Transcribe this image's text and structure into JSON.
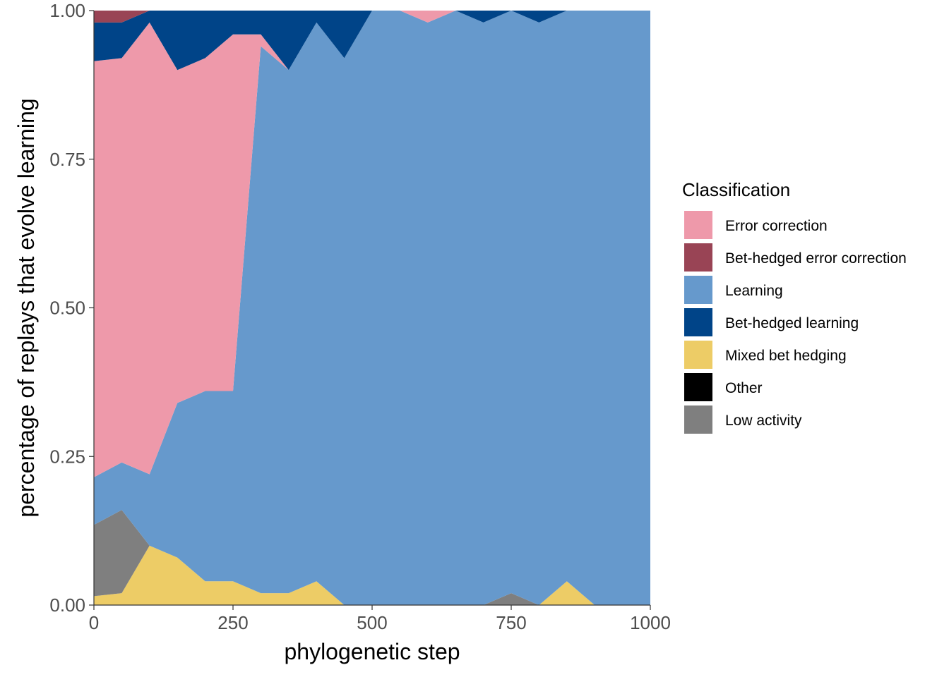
{
  "chart_data": {
    "type": "area",
    "stacked": true,
    "normalized": true,
    "title": "",
    "xlabel": "phylogenetic step",
    "ylabel": "percentage of replays that evolve learning",
    "xlim": [
      0,
      1000
    ],
    "ylim": [
      0,
      1
    ],
    "x_ticks": [
      "0",
      "250",
      "500",
      "750",
      "1000"
    ],
    "y_ticks": [
      "0.00",
      "0.25",
      "0.50",
      "0.75",
      "1.00"
    ],
    "grid": false,
    "legend": {
      "title": "Classification",
      "position": "right"
    },
    "x": [
      0,
      50,
      100,
      150,
      200,
      250,
      300,
      350,
      400,
      450,
      500,
      550,
      600,
      650,
      700,
      750,
      800,
      850,
      900,
      950,
      1000
    ],
    "series": [
      {
        "name": "Mixed bet hedging",
        "color": "#EDCC66",
        "values": [
          0.015,
          0.02,
          0.1,
          0.08,
          0.04,
          0.04,
          0.02,
          0.02,
          0.04,
          0.0,
          0.0,
          0.0,
          0.0,
          0.0,
          0.0,
          0.0,
          0.0,
          0.04,
          0.0,
          0.0,
          0.0
        ]
      },
      {
        "name": "Low activity",
        "color": "#7F7F7F",
        "values": [
          0.12,
          0.14,
          0.0,
          0.0,
          0.0,
          0.0,
          0.0,
          0.0,
          0.0,
          0.0,
          0.0,
          0.0,
          0.0,
          0.0,
          0.0,
          0.02,
          0.0,
          0.0,
          0.0,
          0.0,
          0.0
        ]
      },
      {
        "name": "Other",
        "color": "#000000",
        "values": [
          0,
          0,
          0,
          0,
          0,
          0,
          0,
          0,
          0,
          0,
          0,
          0,
          0,
          0,
          0,
          0,
          0,
          0,
          0,
          0,
          0
        ]
      },
      {
        "name": "Learning",
        "color": "#6699CC",
        "values": [
          0.08,
          0.08,
          0.12,
          0.26,
          0.32,
          0.32,
          0.92,
          0.88,
          0.94,
          0.92,
          1.0,
          1.0,
          0.98,
          1.0,
          0.98,
          0.98,
          0.98,
          0.96,
          1.0,
          1.0,
          1.0
        ]
      },
      {
        "name": "Error correction",
        "color": "#EE99AA",
        "values": [
          0.7,
          0.68,
          0.76,
          0.56,
          0.56,
          0.6,
          0.02,
          0.0,
          0.0,
          0.0,
          0.0,
          0.0,
          0.02,
          0.0,
          0.0,
          0.0,
          0.0,
          0.0,
          0.0,
          0.0,
          0.0
        ]
      },
      {
        "name": "Bet-hedged learning",
        "color": "#004488",
        "values": [
          0.065,
          0.06,
          0.02,
          0.1,
          0.08,
          0.04,
          0.04,
          0.1,
          0.02,
          0.08,
          0.0,
          0.0,
          0.0,
          0.0,
          0.02,
          0.0,
          0.02,
          0.0,
          0.0,
          0.0,
          0.0
        ]
      },
      {
        "name": "Bet-hedged error correction",
        "color": "#994455",
        "values": [
          0.02,
          0.02,
          0.0,
          0.0,
          0.0,
          0.0,
          0.0,
          0.0,
          0.0,
          0.0,
          0.0,
          0.0,
          0.0,
          0.0,
          0.0,
          0.0,
          0.0,
          0.0,
          0.0,
          0.0,
          0.0
        ]
      }
    ],
    "legend_order": [
      "Error correction",
      "Bet-hedged error correction",
      "Learning",
      "Bet-hedged learning",
      "Mixed bet hedging",
      "Other",
      "Low activity"
    ]
  }
}
